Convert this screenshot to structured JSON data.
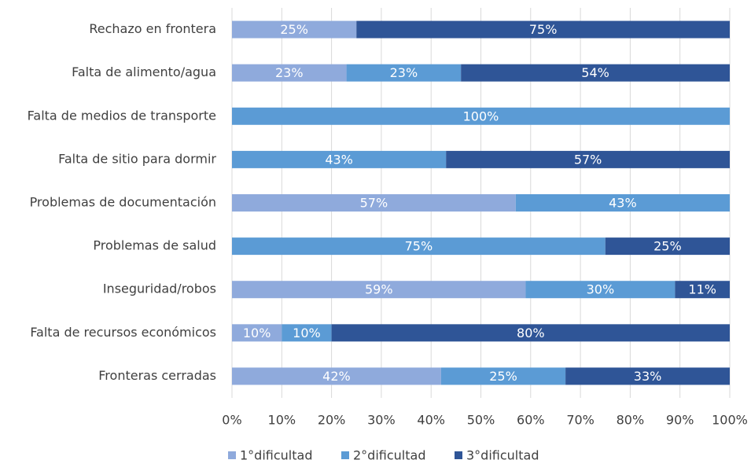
{
  "chart_data": {
    "type": "stacked_barh",
    "categories": [
      "Rechazo en frontera",
      "Falta de alimento/agua",
      "Falta de medios de transporte",
      "Falta de sitio para dormir",
      "Problemas de documentación",
      "Problemas de salud",
      "Inseguridad/robos",
      "Falta de recursos económicos",
      "Fronteras cerradas"
    ],
    "series": [
      {
        "name": "1°dificultad",
        "color": "#8faadc",
        "values": [
          25,
          23,
          0,
          0,
          57,
          0,
          59,
          10,
          42
        ],
        "value_labels": [
          "25%",
          "23%",
          null,
          null,
          "57%",
          null,
          "59%",
          "10%",
          "42%"
        ]
      },
      {
        "name": "2°dificultad",
        "color": "#5b9bd5",
        "values": [
          0,
          23,
          100,
          43,
          43,
          75,
          30,
          10,
          25
        ],
        "value_labels": [
          null,
          "23%",
          "100%",
          "43%",
          "43%",
          "75%",
          "30%",
          "10%",
          "25%"
        ]
      },
      {
        "name": "3°dificultad",
        "color": "#2f5597",
        "values": [
          75,
          54,
          0,
          57,
          0,
          25,
          11,
          80,
          33
        ],
        "value_labels": [
          "75%",
          "54%",
          null,
          "57%",
          null,
          "25%",
          "11%",
          "80%",
          "33%"
        ]
      }
    ],
    "xlim": [
      0,
      100
    ],
    "xticks": [
      {
        "value": 0,
        "label": "0%"
      },
      {
        "value": 10,
        "label": "10%"
      },
      {
        "value": 20,
        "label": "20%"
      },
      {
        "value": 30,
        "label": "30%"
      },
      {
        "value": 40,
        "label": "40%"
      },
      {
        "value": 50,
        "label": "50%"
      },
      {
        "value": 60,
        "label": "60%"
      },
      {
        "value": 70,
        "label": "70%"
      },
      {
        "value": 80,
        "label": "80%"
      },
      {
        "value": 90,
        "label": "90%"
      },
      {
        "value": 100,
        "label": "100%"
      }
    ],
    "grid": true,
    "legend": "bottom"
  }
}
